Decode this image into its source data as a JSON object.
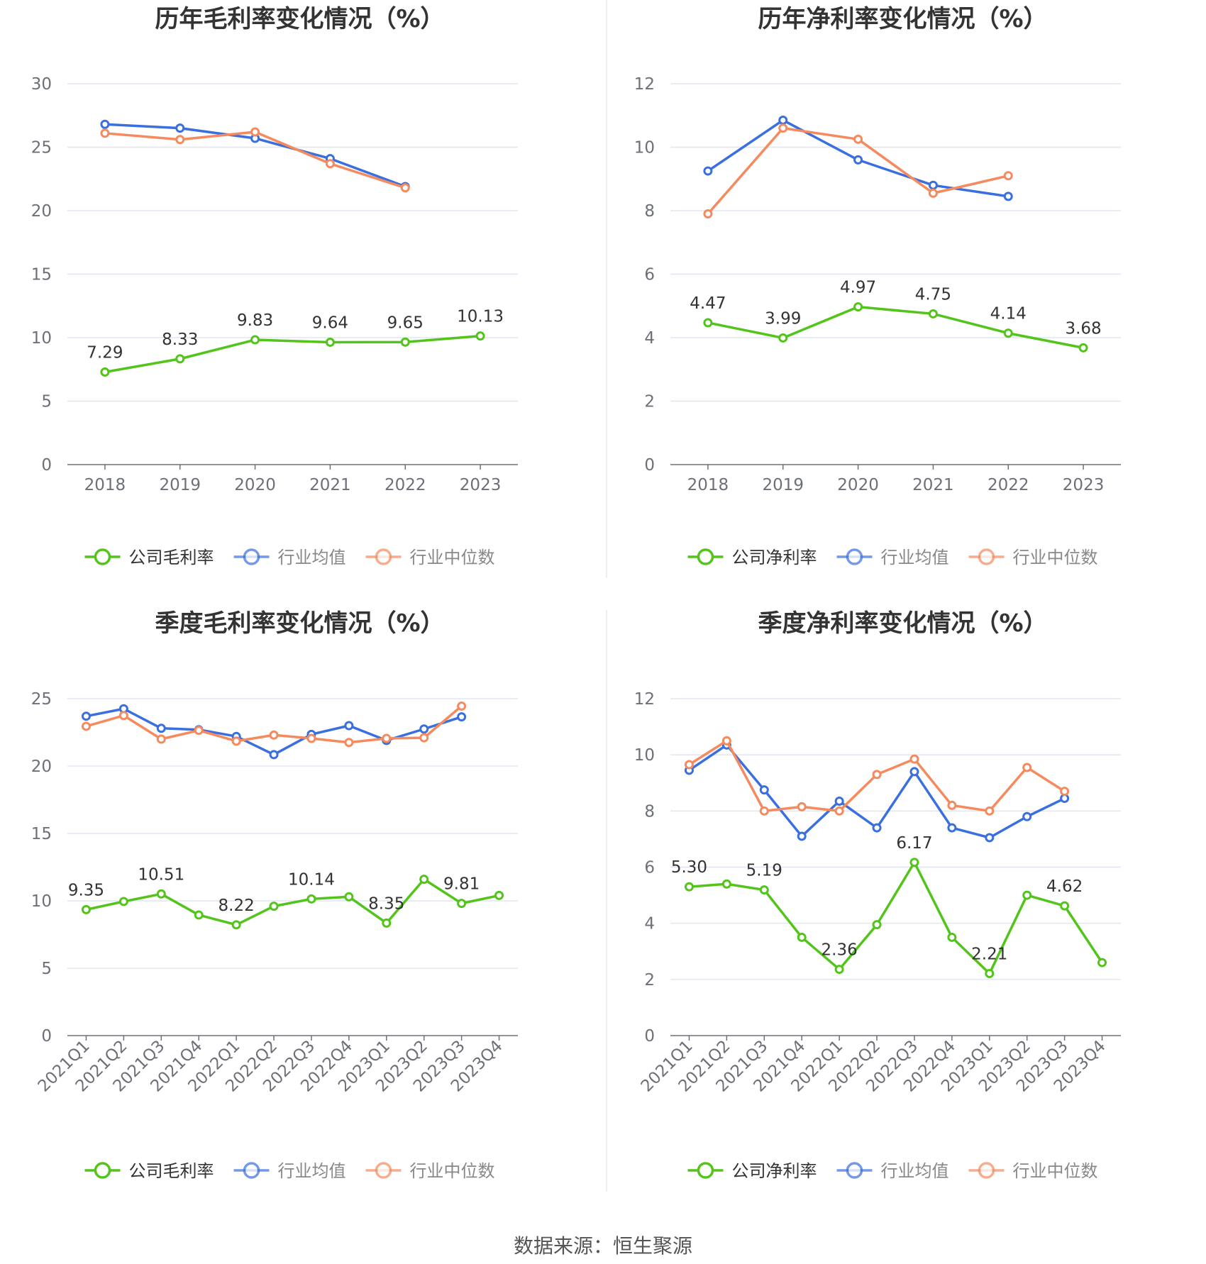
{
  "source_text": "数据来源：恒生聚源",
  "colors": {
    "company": "#52c41a",
    "avg": "#3a6fe0",
    "median": "#f58a5e",
    "grid": "#e0e6f1",
    "axis": "#6e7079",
    "text": "#333333"
  },
  "chart_data": [
    {
      "type": "line",
      "title": "历年毛利率变化情况（%）",
      "x": [
        "2018",
        "2019",
        "2020",
        "2021",
        "2022",
        "2023"
      ],
      "ylim": [
        0,
        30
      ],
      "yticks": [
        0,
        5,
        10,
        15,
        20,
        25,
        30
      ],
      "rotate_x": false,
      "series": [
        {
          "name": "公司毛利率",
          "key": "company",
          "values": [
            7.29,
            8.33,
            9.83,
            9.64,
            9.65,
            10.13
          ],
          "labels": [
            "7.29",
            "8.33",
            "9.83",
            "9.64",
            "9.65",
            "10.13"
          ]
        },
        {
          "name": "行业均值",
          "key": "avg",
          "values": [
            26.8,
            26.5,
            25.7,
            24.1,
            21.9,
            null
          ]
        },
        {
          "name": "行业中位数",
          "key": "median",
          "values": [
            26.1,
            25.6,
            26.2,
            23.7,
            21.8,
            null
          ]
        }
      ]
    },
    {
      "type": "line",
      "title": "历年净利率变化情况（%）",
      "x": [
        "2018",
        "2019",
        "2020",
        "2021",
        "2022",
        "2023"
      ],
      "ylim": [
        0,
        12
      ],
      "yticks": [
        0,
        2,
        4,
        6,
        8,
        10,
        12
      ],
      "rotate_x": false,
      "series": [
        {
          "name": "公司净利率",
          "key": "company",
          "values": [
            4.47,
            3.99,
            4.97,
            4.75,
            4.14,
            3.68
          ],
          "labels": [
            "4.47",
            "3.99",
            "4.97",
            "4.75",
            "4.14",
            "3.68"
          ]
        },
        {
          "name": "行业均值",
          "key": "avg",
          "values": [
            9.25,
            10.85,
            9.6,
            8.8,
            8.45,
            null
          ]
        },
        {
          "name": "行业中位数",
          "key": "median",
          "values": [
            7.9,
            10.6,
            10.25,
            8.55,
            9.1,
            null
          ]
        }
      ]
    },
    {
      "type": "line",
      "title": "季度毛利率变化情况（%）",
      "x": [
        "2021Q1",
        "2021Q2",
        "2021Q3",
        "2021Q4",
        "2022Q1",
        "2022Q2",
        "2022Q3",
        "2022Q4",
        "2023Q1",
        "2023Q2",
        "2023Q3",
        "2023Q4"
      ],
      "ylim": [
        0,
        25
      ],
      "yticks": [
        0,
        5,
        10,
        15,
        20,
        25
      ],
      "rotate_x": true,
      "series": [
        {
          "name": "公司毛利率",
          "key": "company",
          "values": [
            9.35,
            9.95,
            10.51,
            8.95,
            8.22,
            9.6,
            10.14,
            10.3,
            8.35,
            11.6,
            9.81,
            10.4
          ],
          "labels": [
            "9.35",
            "",
            "10.51",
            "",
            "8.22",
            "",
            "10.14",
            "",
            "8.35",
            "",
            "9.81",
            ""
          ]
        },
        {
          "name": "行业均值",
          "key": "avg",
          "values": [
            23.7,
            24.25,
            22.8,
            22.7,
            22.2,
            20.85,
            22.35,
            23.0,
            21.9,
            22.75,
            23.65,
            null
          ]
        },
        {
          "name": "行业中位数",
          "key": "median",
          "values": [
            22.95,
            23.75,
            22.0,
            22.65,
            21.85,
            22.3,
            22.05,
            21.75,
            22.05,
            22.1,
            24.45,
            null
          ]
        }
      ]
    },
    {
      "type": "line",
      "title": "季度净利率变化情况（%）",
      "x": [
        "2021Q1",
        "2021Q2",
        "2021Q3",
        "2021Q4",
        "2022Q1",
        "2022Q2",
        "2022Q3",
        "2022Q4",
        "2023Q1",
        "2023Q2",
        "2023Q3",
        "2023Q4"
      ],
      "ylim": [
        0,
        12
      ],
      "yticks": [
        0,
        2,
        4,
        6,
        8,
        10,
        12
      ],
      "rotate_x": true,
      "series": [
        {
          "name": "公司净利率",
          "key": "company",
          "values": [
            5.3,
            5.4,
            5.19,
            3.5,
            2.36,
            3.95,
            6.17,
            3.5,
            2.21,
            5.0,
            4.62,
            2.6
          ],
          "labels": [
            "5.30",
            "",
            "5.19",
            "",
            "2.36",
            "",
            "6.17",
            "",
            "2.21",
            "",
            "4.62",
            ""
          ]
        },
        {
          "name": "行业均值",
          "key": "avg",
          "values": [
            9.45,
            10.35,
            8.75,
            7.1,
            8.35,
            7.4,
            9.4,
            7.4,
            7.05,
            7.8,
            8.45,
            null
          ]
        },
        {
          "name": "行业中位数",
          "key": "median",
          "values": [
            9.65,
            10.5,
            8.0,
            8.15,
            8.0,
            9.3,
            9.85,
            8.2,
            8.0,
            9.55,
            8.7,
            null
          ]
        }
      ]
    }
  ]
}
